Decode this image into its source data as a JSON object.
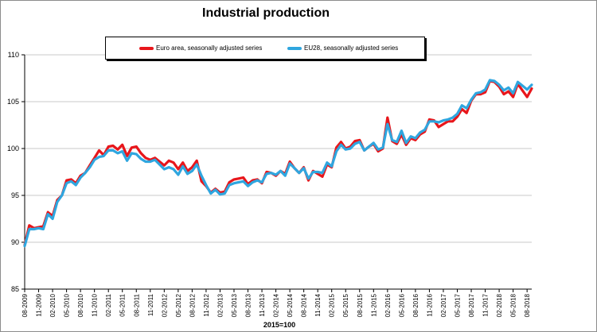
{
  "chart_data": {
    "type": "line",
    "title": "Industrial production",
    "xlabel": "2015=100",
    "ylabel": "",
    "ylim": [
      85,
      110
    ],
    "yticks": [
      85,
      90,
      95,
      100,
      105,
      110
    ],
    "grid": "horizontal",
    "legend": "top",
    "x_tick_labels": [
      "08-2009",
      "11-2009",
      "02-2010",
      "05-2010",
      "08-2010",
      "11-2010",
      "02-2011",
      "05-2011",
      "08-2011",
      "11-2011",
      "02-2012",
      "05-2012",
      "08-2012",
      "11-2012",
      "02-2013",
      "05-2013",
      "08-2013",
      "11-2013",
      "02-2014",
      "05-2014",
      "08-2014",
      "11-2014",
      "02-2015",
      "05-2015",
      "08-2015",
      "11-2015",
      "02-2016",
      "05-2016",
      "08-2016",
      "11-2016",
      "02-2017",
      "05-2017",
      "08-2017",
      "11-2017",
      "02-2018",
      "05-2018",
      "08-2018"
    ],
    "start_month": "08-2009",
    "series": [
      {
        "name": "Euro area, seasonally adjusted series",
        "color": "#e8161b",
        "values": [
          89.7,
          91.8,
          91.5,
          91.6,
          91.7,
          93.2,
          92.8,
          94.5,
          95.0,
          96.6,
          96.7,
          96.3,
          97.1,
          97.4,
          98.2,
          99.0,
          99.8,
          99.3,
          100.2,
          100.3,
          99.9,
          100.4,
          99.2,
          100.1,
          100.2,
          99.5,
          99.0,
          98.8,
          99.0,
          98.6,
          98.2,
          98.7,
          98.5,
          97.8,
          98.5,
          97.6,
          98.0,
          98.7,
          96.5,
          96.0,
          95.3,
          95.7,
          95.3,
          95.4,
          96.4,
          96.7,
          96.8,
          96.9,
          96.2,
          96.6,
          96.7,
          96.3,
          97.5,
          97.4,
          97.1,
          97.6,
          97.3,
          98.6,
          97.9,
          97.4,
          98.0,
          96.6,
          97.6,
          97.3,
          97.0,
          98.3,
          98.0,
          100.1,
          100.7,
          100.0,
          100.2,
          100.8,
          100.9,
          99.8,
          100.2,
          100.5,
          99.7,
          100.0,
          103.3,
          100.8,
          100.5,
          101.5,
          100.4,
          101.1,
          100.9,
          101.5,
          101.8,
          103.1,
          103.0,
          102.3,
          102.6,
          102.9,
          102.9,
          103.4,
          104.2,
          103.8,
          105.1,
          105.8,
          105.8,
          106.0,
          107.2,
          107.1,
          106.6,
          105.8,
          106.1,
          105.5,
          106.9,
          106.2,
          105.5,
          106.4
        ]
      },
      {
        "name": "EU28, seasonally adjusted series",
        "color": "#2fa6df",
        "values": [
          89.6,
          91.4,
          91.4,
          91.5,
          91.4,
          93.0,
          92.5,
          94.3,
          95.0,
          96.3,
          96.5,
          96.1,
          96.9,
          97.4,
          98.0,
          98.8,
          99.1,
          99.2,
          99.8,
          99.8,
          99.5,
          99.7,
          98.7,
          99.5,
          99.4,
          98.9,
          98.6,
          98.6,
          98.8,
          98.3,
          97.8,
          98.0,
          97.8,
          97.2,
          98.1,
          97.3,
          97.6,
          98.3,
          97.1,
          96.1,
          95.2,
          95.6,
          95.1,
          95.2,
          96.1,
          96.3,
          96.4,
          96.5,
          96.0,
          96.4,
          96.6,
          96.4,
          97.3,
          97.4,
          97.2,
          97.6,
          97.1,
          98.4,
          97.9,
          97.4,
          97.9,
          96.8,
          97.5,
          97.5,
          97.4,
          98.5,
          98.1,
          99.7,
          100.4,
          99.9,
          100.0,
          100.5,
          100.7,
          99.8,
          100.2,
          100.6,
          99.9,
          100.1,
          102.6,
          100.9,
          100.7,
          101.9,
          100.6,
          101.3,
          101.1,
          101.7,
          102.0,
          102.9,
          102.9,
          102.8,
          103.0,
          103.1,
          103.3,
          103.7,
          104.6,
          104.3,
          105.2,
          105.9,
          106.0,
          106.3,
          107.3,
          107.2,
          106.8,
          106.2,
          106.5,
          105.9,
          107.1,
          106.7,
          106.3,
          106.8
        ]
      }
    ]
  }
}
